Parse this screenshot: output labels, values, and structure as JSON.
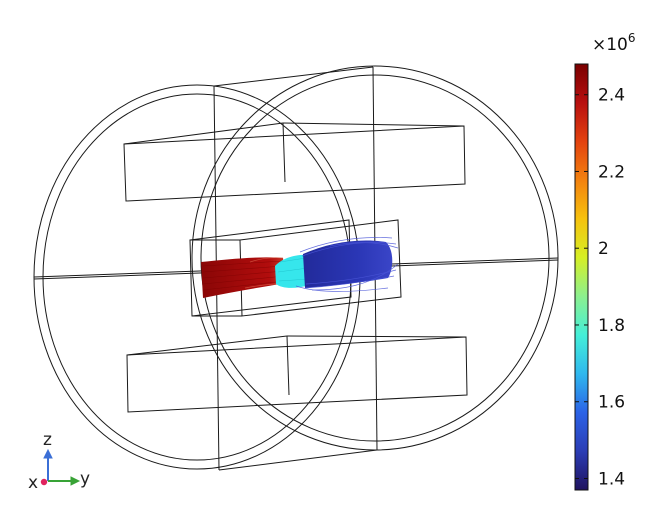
{
  "colorbar": {
    "multiplier_base": "×10",
    "multiplier_exp": "6",
    "min": 1.37,
    "max": 2.48,
    "ticks": [
      {
        "value": 2.4,
        "label": "2.4"
      },
      {
        "value": 2.2,
        "label": "2.2"
      },
      {
        "value": 2.0,
        "label": "2"
      },
      {
        "value": 1.8,
        "label": "1.8"
      },
      {
        "value": 1.6,
        "label": "1.6"
      },
      {
        "value": 1.4,
        "label": "1.4"
      }
    ],
    "colormap": [
      "#20135f",
      "#2b3db5",
      "#2b62e6",
      "#2fb8ee",
      "#44efd8",
      "#8cf08f",
      "#d6ef25",
      "#f6c20e",
      "#f3820f",
      "#e3420f",
      "#b81010",
      "#7a0000"
    ]
  },
  "stream_colors": {
    "high": "#a00a0a",
    "mid": "#35e8ee",
    "low": "#2834b0"
  },
  "triad": {
    "z_label": "z",
    "x_label": "x",
    "y_label": "y",
    "z_color": "#3b6fd6",
    "y_color": "#38a336",
    "x_color": "#e0245e"
  }
}
